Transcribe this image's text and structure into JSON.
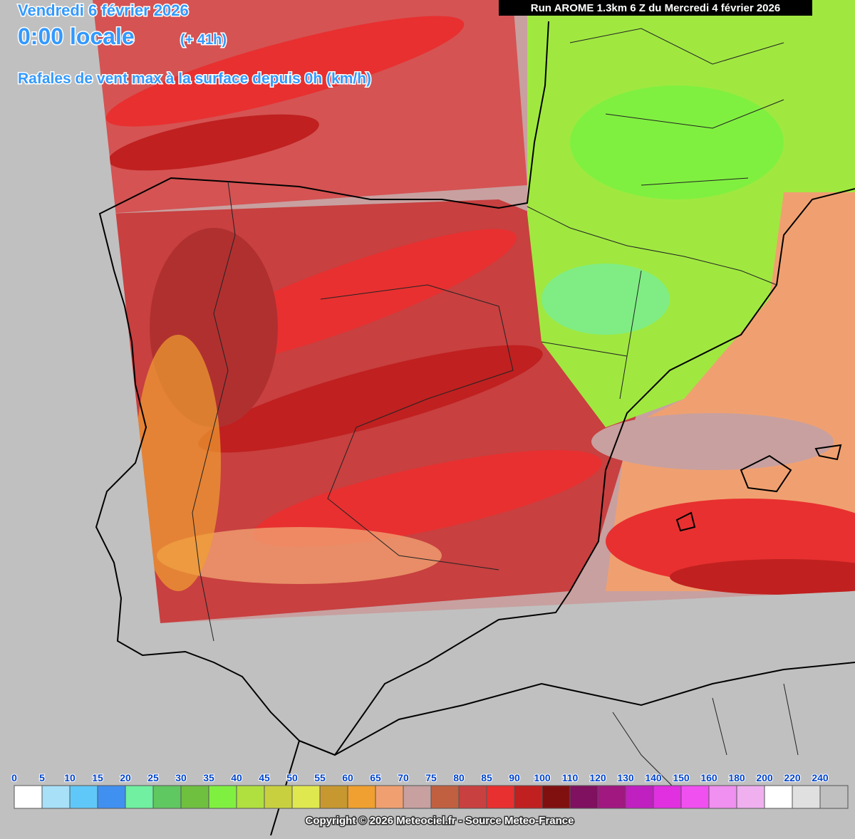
{
  "header": {
    "date": "Vendredi 6 février 2026",
    "time": "0:00 locale",
    "lead": "(+ 41h)",
    "parameter": "Rafales de vent max à la surface depuis 0h (km/h)",
    "run": "Run AROME 1.3km 6 Z du Mercredi 4 février 2026"
  },
  "legend": {
    "labels": [
      0,
      5,
      10,
      15,
      20,
      25,
      30,
      35,
      40,
      45,
      50,
      55,
      60,
      65,
      70,
      75,
      80,
      85,
      90,
      100,
      110,
      120,
      130,
      140,
      150,
      160,
      180,
      200,
      220,
      240
    ],
    "colors": [
      "#ffffff",
      "#a8e0f8",
      "#60c8f8",
      "#4090f0",
      "#70f0a0",
      "#60c860",
      "#70c040",
      "#80f040",
      "#b0e040",
      "#c8d040",
      "#e0e850",
      "#c89830",
      "#f0a030",
      "#f0a070",
      "#c8a0a0",
      "#c06040",
      "#c84040",
      "#e83030",
      "#c02020",
      "#801010",
      "#801060",
      "#a01880",
      "#c020c0",
      "#e030e0",
      "#f050f0",
      "#f090f0",
      "#f0b0f0",
      "#ffffff",
      "#e0e0e0",
      "#c0c0c0"
    ]
  },
  "footer": {
    "copyright": "Copyright © 2026 Meteociel.fr - Source Meteo-France"
  }
}
